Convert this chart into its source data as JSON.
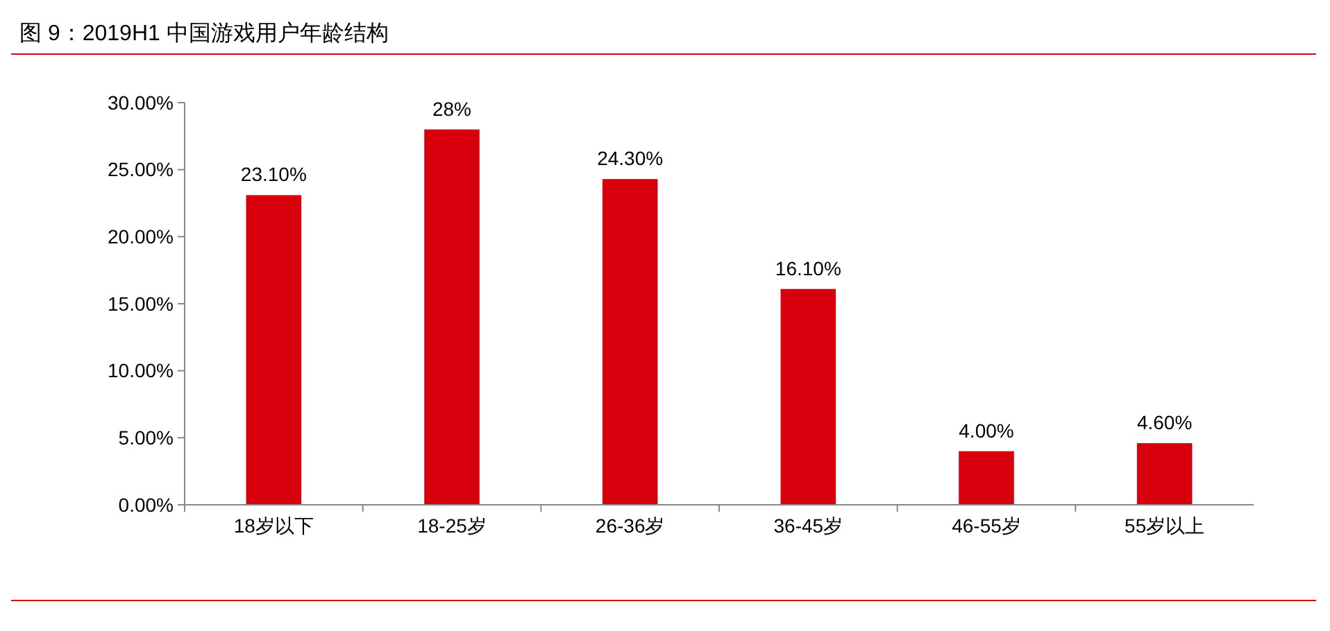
{
  "chart_data": {
    "type": "bar",
    "title": "图 9：2019H1 中国游戏用户年龄结构",
    "categories": [
      "18岁以下",
      "18-25岁",
      "26-36岁",
      "36-45岁",
      "46-55岁",
      "55岁以上"
    ],
    "values": [
      23.1,
      28,
      24.3,
      16.1,
      4.0,
      4.6
    ],
    "value_labels": [
      "23.10%",
      "28%",
      "24.30%",
      "16.10%",
      "4.00%",
      "4.60%"
    ],
    "color": "#d9000d",
    "ylim": [
      0,
      30
    ],
    "yticks": [
      {
        "value": 0,
        "label": "0.00%"
      },
      {
        "value": 5,
        "label": "5.00%"
      },
      {
        "value": 10,
        "label": "10.00%"
      },
      {
        "value": 15,
        "label": "15.00%"
      },
      {
        "value": 20,
        "label": "20.00%"
      },
      {
        "value": 25,
        "label": "25.00%"
      },
      {
        "value": 30,
        "label": "30.00%"
      }
    ],
    "grid": false
  }
}
